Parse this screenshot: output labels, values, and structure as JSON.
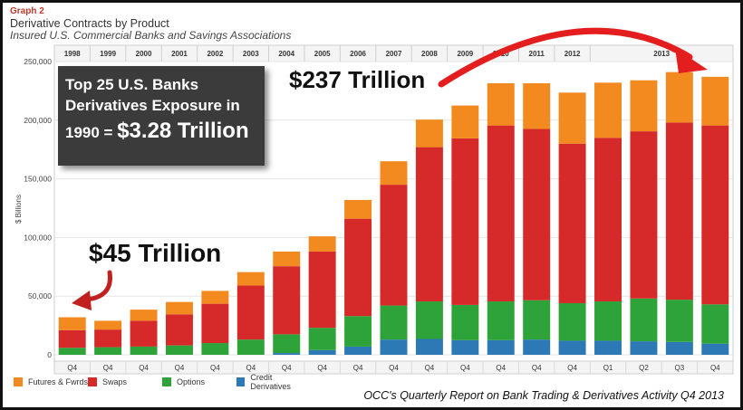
{
  "header": {
    "graph_no": "Graph 2",
    "title": "Derivative Contracts by Product",
    "subtitle": "Insured U.S. Commercial Banks and Savings Associations"
  },
  "annotations": {
    "callout_lines": [
      "Top 25 U.S. Banks",
      "Derivatives Exposure in"
    ],
    "callout_year_prefix": "1990 = ",
    "callout_value": "$3.28 Trillion",
    "start_label": "$45 Trillion",
    "end_label": "$237 Trillion"
  },
  "source": "OCC's Quarterly Report on Bank Trading & Derivatives Activity Q4 2013",
  "colors": {
    "futures": "#f28a1f",
    "swaps": "#d62a2a",
    "options": "#2ea33a",
    "credit": "#2c79b5",
    "arrow": "#e41e1e"
  },
  "chart_data": {
    "type": "bar",
    "stacked": true,
    "ylabel": "$ Billions",
    "ylim": [
      0,
      250000
    ],
    "yticks": [
      0,
      50000,
      100000,
      150000,
      200000,
      250000
    ],
    "ytick_labels": [
      "0",
      "50,000",
      "100,000",
      "150,000",
      "200,000",
      "250,000"
    ],
    "year_labels": [
      {
        "label": "1998",
        "span": 1
      },
      {
        "label": "1999",
        "span": 1
      },
      {
        "label": "2000",
        "span": 1
      },
      {
        "label": "2001",
        "span": 1
      },
      {
        "label": "2002",
        "span": 1
      },
      {
        "label": "2003",
        "span": 1
      },
      {
        "label": "2004",
        "span": 1
      },
      {
        "label": "2005",
        "span": 1
      },
      {
        "label": "2006",
        "span": 1
      },
      {
        "label": "2007",
        "span": 1
      },
      {
        "label": "2008",
        "span": 1
      },
      {
        "label": "2009",
        "span": 1
      },
      {
        "label": "2010",
        "span": 1
      },
      {
        "label": "2011",
        "span": 1
      },
      {
        "label": "2012",
        "span": 1
      },
      {
        "label": "2013",
        "span": 4
      }
    ],
    "categories": [
      "Q4",
      "Q4",
      "Q4",
      "Q4",
      "Q4",
      "Q4",
      "Q4",
      "Q4",
      "Q4",
      "Q4",
      "Q4",
      "Q4",
      "Q4",
      "Q4",
      "Q4",
      "Q1",
      "Q2",
      "Q3",
      "Q4"
    ],
    "series": [
      {
        "name": "Credit Derivatives",
        "key": "credit",
        "values": [
          0,
          0,
          0,
          0,
          0,
          0,
          1500,
          4000,
          7000,
          13000,
          13500,
          12500,
          12500,
          13000,
          12000,
          12000,
          11500,
          11000,
          9500
        ]
      },
      {
        "name": "Options",
        "key": "options",
        "values": [
          6000,
          6500,
          7000,
          8000,
          10000,
          13000,
          16000,
          19000,
          26000,
          29000,
          32000,
          30000,
          33000,
          33500,
          32000,
          33500,
          36500,
          36000,
          33500
        ]
      },
      {
        "name": "Swaps",
        "key": "swaps",
        "values": [
          15000,
          15000,
          22000,
          26500,
          33500,
          46000,
          58000,
          65000,
          83000,
          103000,
          131500,
          142000,
          150000,
          146000,
          136000,
          139500,
          142500,
          151000,
          152500
        ]
      },
      {
        "name": "Futures & Fwrds",
        "key": "futures",
        "values": [
          11000,
          7500,
          9500,
          10500,
          11000,
          11500,
          12500,
          13000,
          16000,
          20000,
          23500,
          28000,
          36000,
          39000,
          43500,
          47000,
          43500,
          43000,
          41500
        ]
      }
    ]
  }
}
